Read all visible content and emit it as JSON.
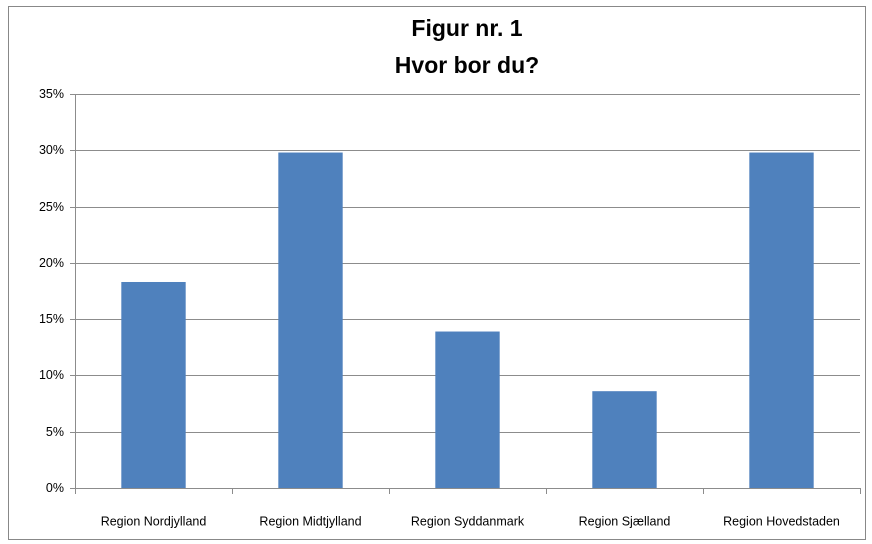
{
  "chart_data": {
    "type": "bar",
    "title": "Figur nr. 1",
    "subtitle": "Hvor bor du?",
    "categories": [
      "Region Nordjylland",
      "Region Midtjylland",
      "Region Syddanmark",
      "Region Sjælland",
      "Region Hovedstaden"
    ],
    "values": [
      18.3,
      29.8,
      13.9,
      8.6,
      29.8
    ],
    "color": "#4f81bd",
    "ylim": [
      0,
      35
    ],
    "yticks": [
      {
        "value": 0,
        "label": "0%"
      },
      {
        "value": 5,
        "label": "5%"
      },
      {
        "value": 10,
        "label": "10%"
      },
      {
        "value": 15,
        "label": "15%"
      },
      {
        "value": 20,
        "label": "20%"
      },
      {
        "value": 25,
        "label": "25%"
      },
      {
        "value": 30,
        "label": "30%"
      },
      {
        "value": 35,
        "label": "35%"
      }
    ],
    "grid": true
  }
}
